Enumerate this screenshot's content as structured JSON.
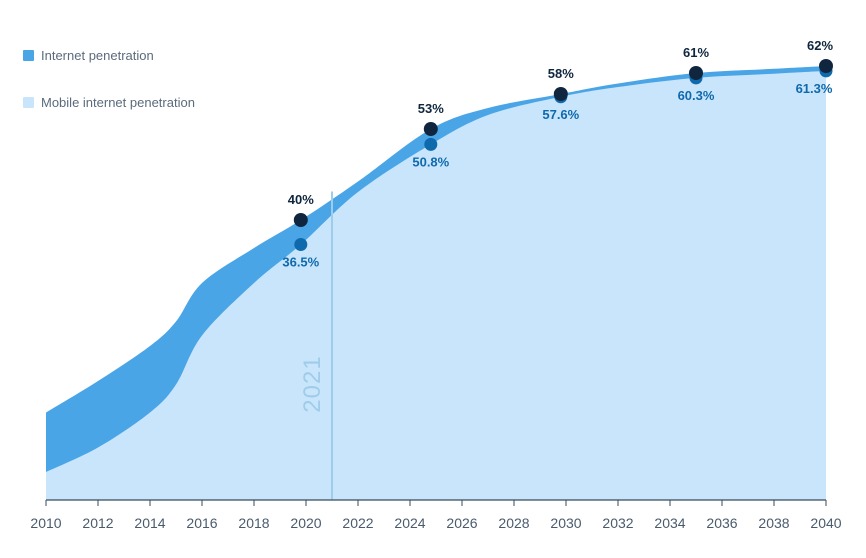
{
  "chart_data": {
    "type": "area",
    "title": "",
    "xlabel": "",
    "ylabel": "",
    "x_ticks": [
      "2010",
      "2012",
      "2014",
      "2016",
      "2018",
      "2020",
      "2022",
      "2024",
      "2026",
      "2028",
      "2030",
      "2032",
      "2034",
      "2036",
      "2038",
      "2040"
    ],
    "xlim": [
      2010,
      2040
    ],
    "ylim": [
      0,
      70
    ],
    "grid": false,
    "legend_position": "top-left",
    "series": [
      {
        "name": "Internet penetration",
        "color": "#4aa5e6",
        "x": [
          2010,
          2012,
          2014,
          2015,
          2016,
          2018,
          2019.8,
          2022,
          2024.8,
          2027,
          2029.8,
          2032,
          2035,
          2038,
          2040
        ],
        "values": [
          12.5,
          17,
          22,
          25.5,
          31,
          36,
          40,
          45.5,
          53,
          56,
          58,
          59.5,
          61,
          61.6,
          62
        ]
      },
      {
        "name": "Mobile internet penetration",
        "color": "#c9e5fb",
        "x": [
          2010,
          2012,
          2014,
          2015,
          2016,
          2018,
          2019.8,
          2022,
          2024.8,
          2027,
          2029.8,
          2032,
          2035,
          2038,
          2040
        ],
        "values": [
          4,
          7.5,
          12.5,
          16.5,
          23.5,
          31,
          36.5,
          44,
          50.8,
          55,
          57.6,
          59,
          60.3,
          60.9,
          61.3
        ]
      }
    ],
    "markers": {
      "internet": {
        "color": "#10263f",
        "points": [
          {
            "x": 2019.8,
            "value": 40,
            "label": "40%"
          },
          {
            "x": 2024.8,
            "value": 53,
            "label": "53%"
          },
          {
            "x": 2029.8,
            "value": 58,
            "label": "58%"
          },
          {
            "x": 2035,
            "value": 61,
            "label": "61%"
          },
          {
            "x": 2040,
            "value": 62,
            "label": "62%"
          }
        ]
      },
      "mobile": {
        "color": "#0f6aad",
        "points": [
          {
            "x": 2019.8,
            "value": 36.5,
            "label": "36.5%"
          },
          {
            "x": 2024.8,
            "value": 50.8,
            "label": "50.8%"
          },
          {
            "x": 2029.8,
            "value": 57.6,
            "label": "57.6%"
          },
          {
            "x": 2035,
            "value": 60.3,
            "label": "60.3%"
          },
          {
            "x": 2040,
            "value": 61.3,
            "label": "61.3%"
          }
        ]
      }
    },
    "annotations": [
      {
        "x": 2021,
        "label": "2021",
        "color": "#9fcde9"
      }
    ]
  },
  "legend": {
    "items": [
      {
        "label": "Internet penetration",
        "color": "#4aa5e6"
      },
      {
        "label": "Mobile internet penetration",
        "color": "#c9e5fb"
      }
    ]
  }
}
